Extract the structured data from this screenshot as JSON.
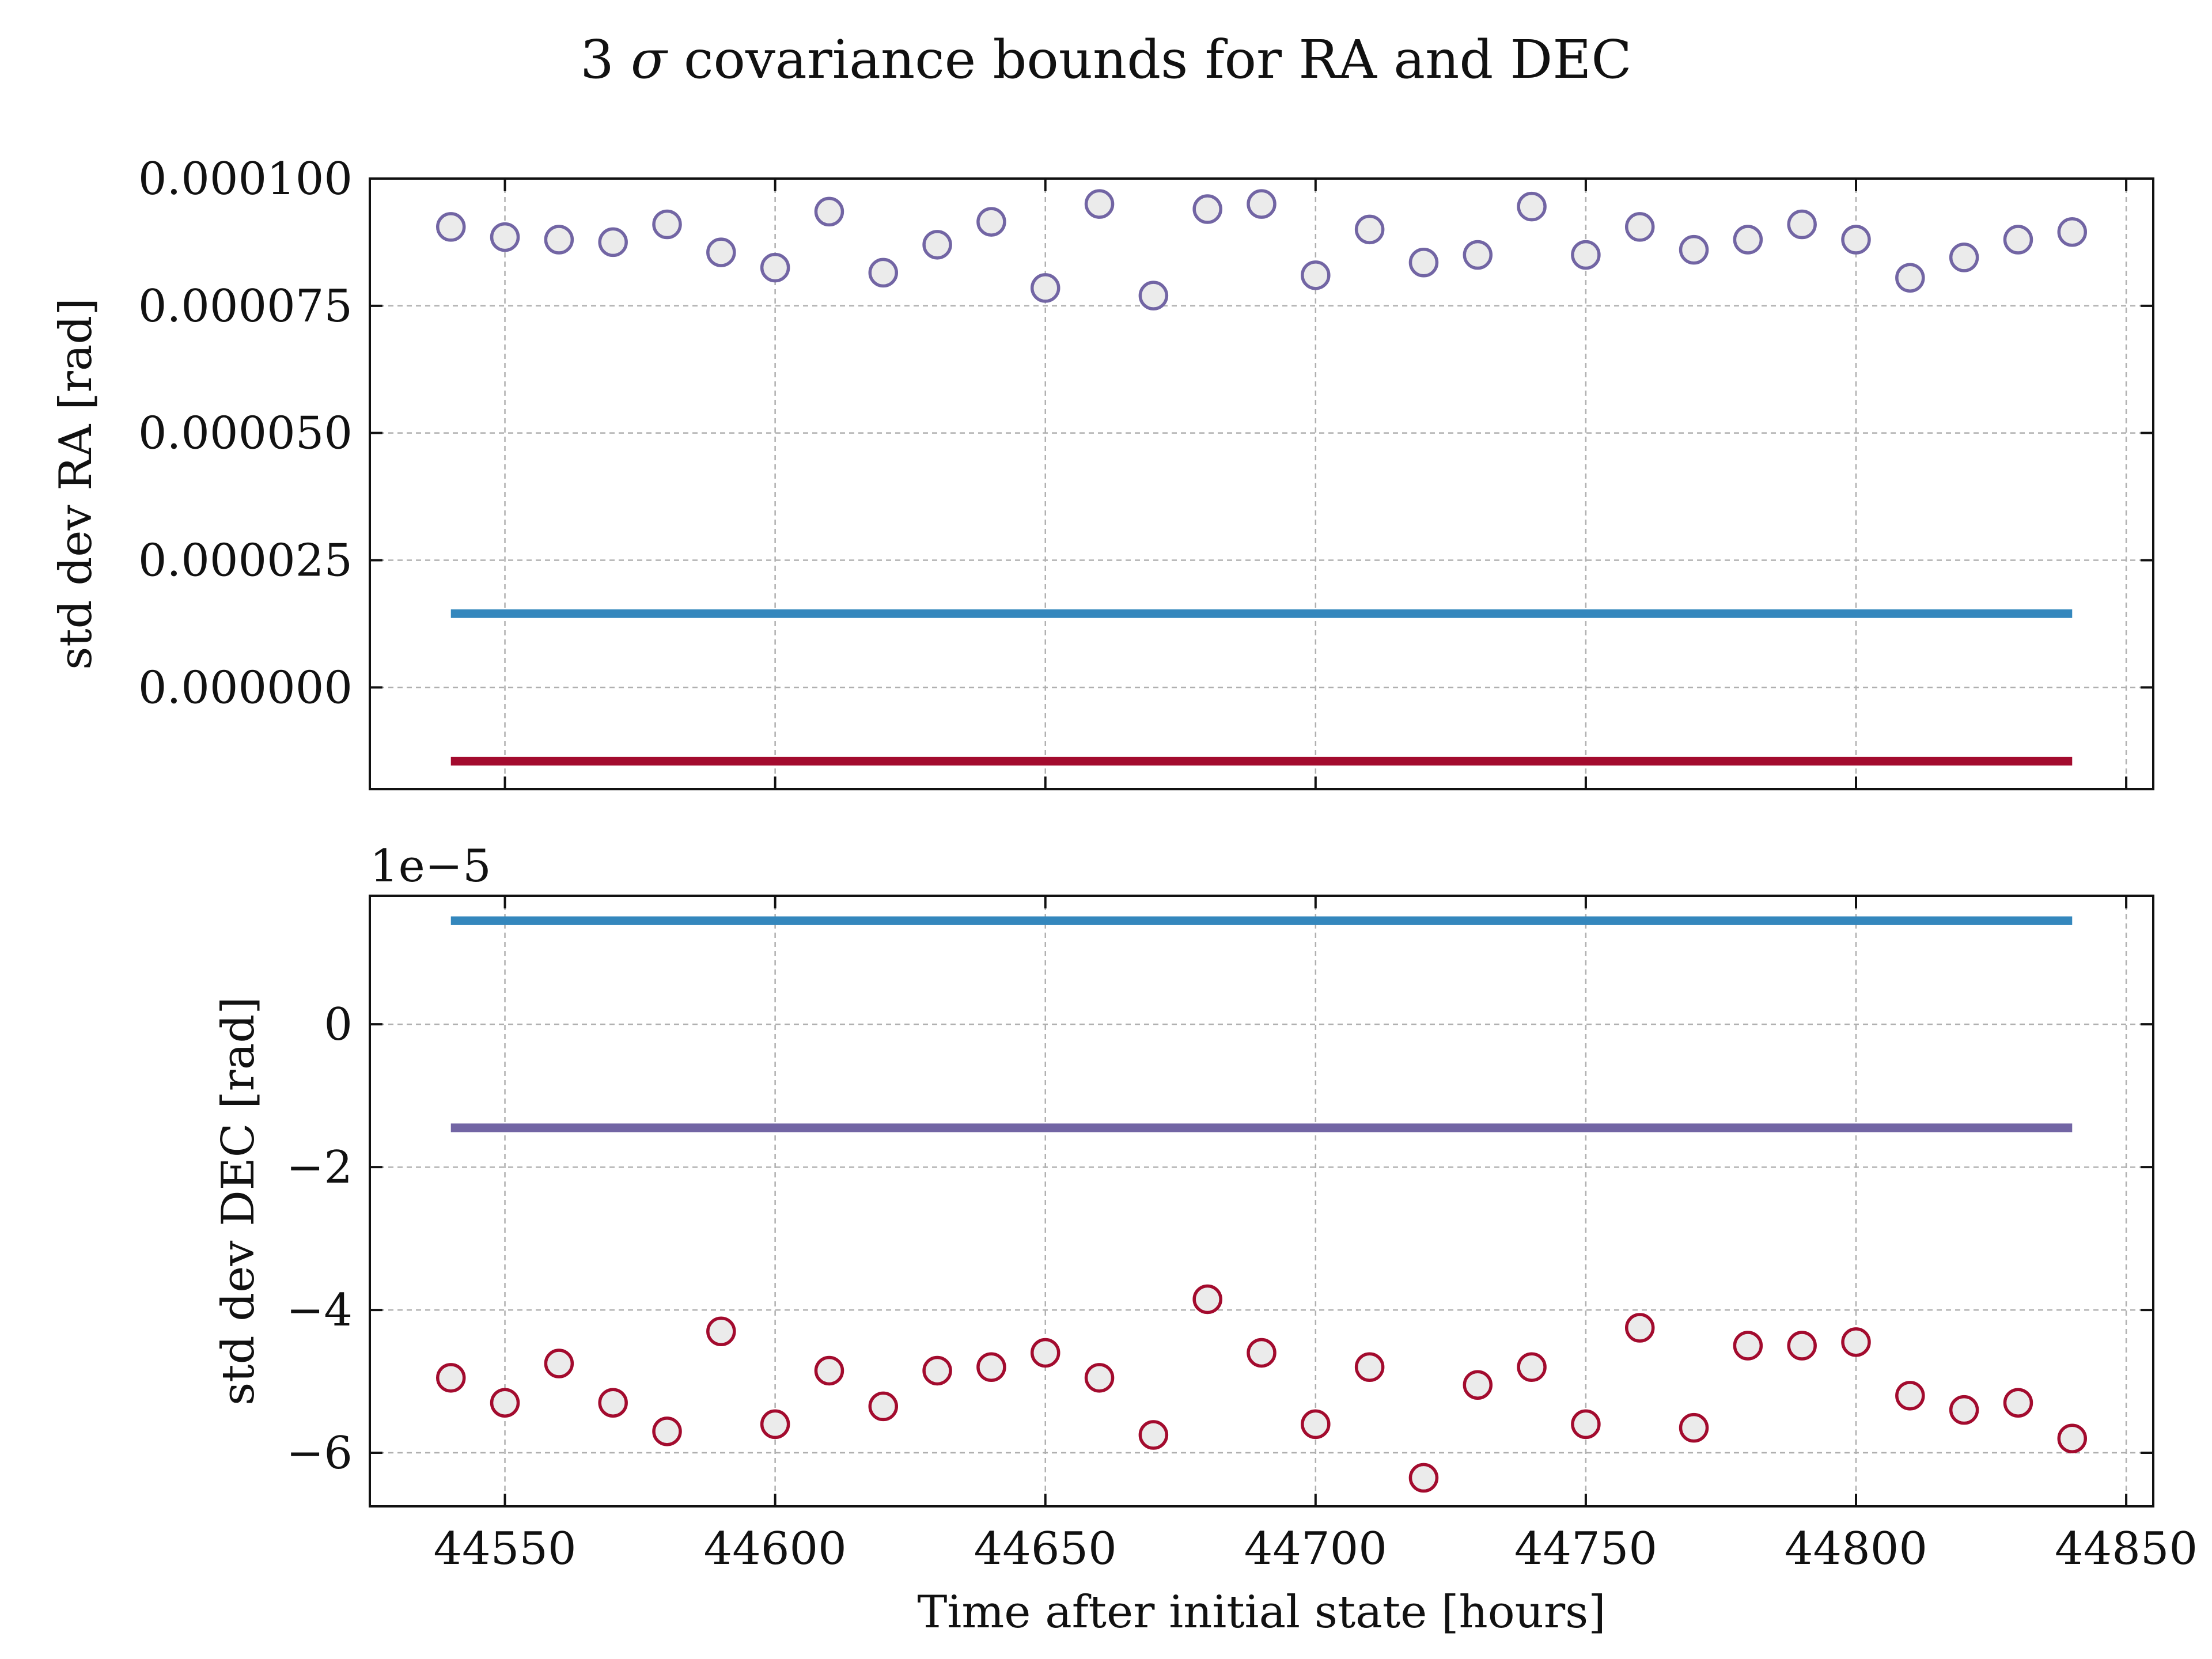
{
  "figure": {
    "title_prefix": "3 ",
    "title_sigma": "σ",
    "title_suffix": " covariance bounds for RA and DEC"
  },
  "colors": {
    "purple": "#7265a4",
    "blue": "#3487bd",
    "crimson": "#a30b2e",
    "marker_fill": "#ebebeb",
    "grid": "#b0b0b0"
  },
  "chart_data": [
    {
      "type": "scatter",
      "panel": "top",
      "ylabel": "std dev RA [rad]",
      "xlabel": "",
      "xlim": [
        44525,
        44855
      ],
      "ylim": [
        -2e-05,
        0.0001
      ],
      "xticks": [
        44550,
        44600,
        44650,
        44700,
        44750,
        44800,
        44850
      ],
      "yticks": [
        0.0,
        2.5e-05,
        5e-05,
        7.5e-05,
        0.0001
      ],
      "ytick_labels": [
        "0.000000",
        "0.000025",
        "0.000050",
        "0.000075",
        "0.000100"
      ],
      "show_xtick_labels": false,
      "grid": true,
      "x": [
        44540,
        44550,
        44560,
        44570,
        44580,
        44590,
        44600,
        44610,
        44620,
        44630,
        44640,
        44650,
        44660,
        44670,
        44680,
        44690,
        44700,
        44710,
        44720,
        44730,
        44740,
        44750,
        44760,
        44770,
        44780,
        44790,
        44800,
        44810,
        44820,
        44830,
        44840
      ],
      "series": [
        {
          "kind": "markers",
          "color": "purple",
          "values": [
            9.05e-05,
            8.85e-05,
            8.8e-05,
            8.75e-05,
            9.1e-05,
            8.55e-05,
            8.25e-05,
            9.35e-05,
            8.15e-05,
            8.7e-05,
            9.15e-05,
            7.85e-05,
            9.5e-05,
            7.7e-05,
            9.4e-05,
            9.5e-05,
            8.1e-05,
            9e-05,
            8.35e-05,
            8.5e-05,
            9.45e-05,
            8.5e-05,
            9.05e-05,
            8.6e-05,
            8.8e-05,
            9.1e-05,
            8.8e-05,
            8.05e-05,
            8.45e-05,
            8.8e-05,
            8.95e-05
          ]
        },
        {
          "kind": "hline",
          "color": "blue",
          "y": 1.45e-05,
          "x_range": [
            44540,
            44840
          ]
        },
        {
          "kind": "hline",
          "color": "crimson",
          "y": -1.45e-05,
          "x_range": [
            44540,
            44840
          ]
        }
      ]
    },
    {
      "type": "scatter",
      "panel": "bottom",
      "ylabel": "std dev DEC [rad]",
      "xlabel": "Time after initial state [hours]",
      "offset_text": "1e−5",
      "xlim": [
        44525,
        44855
      ],
      "ylim": [
        -6.75,
        1.8
      ],
      "xticks": [
        44550,
        44600,
        44650,
        44700,
        44750,
        44800,
        44850
      ],
      "xtick_labels": [
        "44550",
        "44600",
        "44650",
        "44700",
        "44750",
        "44800",
        "44850"
      ],
      "yticks": [
        0,
        -2,
        -4,
        -6
      ],
      "ytick_labels": [
        "0",
        "−2",
        "−4",
        "−6"
      ],
      "grid": true,
      "x": [
        44540,
        44550,
        44560,
        44570,
        44580,
        44590,
        44600,
        44610,
        44620,
        44630,
        44640,
        44650,
        44660,
        44670,
        44680,
        44690,
        44700,
        44710,
        44720,
        44730,
        44740,
        44750,
        44760,
        44770,
        44780,
        44790,
        44800,
        44810,
        44820,
        44830,
        44840
      ],
      "series": [
        {
          "kind": "markers",
          "color": "crimson",
          "values": [
            -4.95,
            -5.3,
            -4.75,
            -5.3,
            -5.7,
            -4.3,
            -5.6,
            -4.85,
            -5.35,
            -4.85,
            -4.8,
            -4.6,
            -4.95,
            -5.75,
            -3.85,
            -4.6,
            -5.6,
            -4.8,
            -6.35,
            -5.05,
            -4.8,
            -5.6,
            -4.25,
            -5.65,
            -4.5,
            -4.5,
            -4.45,
            -5.2,
            -5.4,
            -5.3,
            -5.8
          ]
        },
        {
          "kind": "hline",
          "color": "blue",
          "y": 1.45,
          "x_range": [
            44540,
            44840
          ]
        },
        {
          "kind": "hline",
          "color": "purple",
          "y": -1.45,
          "x_range": [
            44540,
            44840
          ]
        }
      ]
    }
  ]
}
